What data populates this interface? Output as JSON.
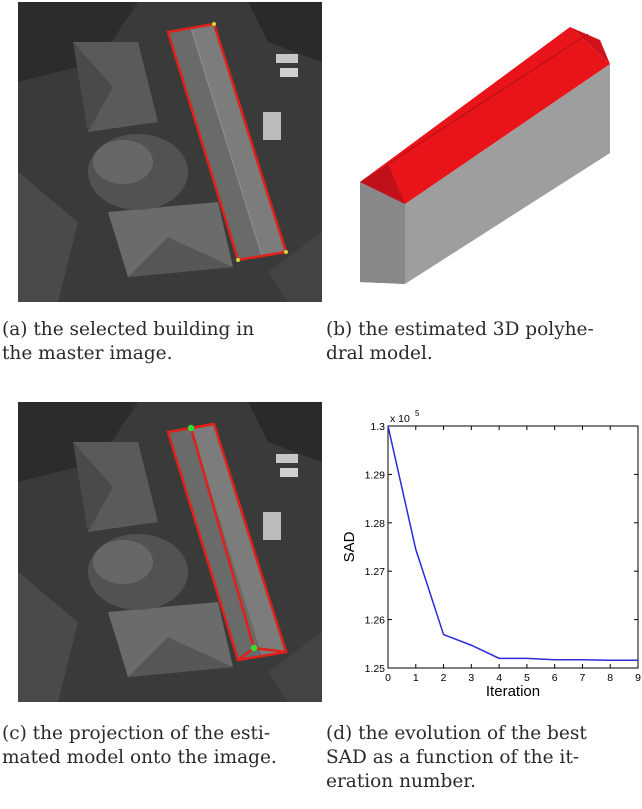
{
  "figure": {
    "panels": [
      {
        "id": "a",
        "caption_line1": "(a) the selected building in",
        "caption_line2": "the master image."
      },
      {
        "id": "b",
        "caption_line1": "(b) the estimated 3D polyhe-",
        "caption_line2": "dral model."
      },
      {
        "id": "c",
        "caption_line1": "(c) the projection of the esti-",
        "caption_line2": "mated model onto the image."
      },
      {
        "id": "d",
        "caption_line1": "(d) the evolution of the best",
        "caption_line2": "SAD as a function of the it-",
        "caption_line3": "eration number."
      }
    ]
  },
  "colors": {
    "outline": "#e0201a",
    "roof": "#e8141a",
    "wall_front": "#8c8c8c",
    "wall_side": "#9e9e9e",
    "line": "#2b2bd9",
    "marker": "#33dd33"
  },
  "chart_data": {
    "type": "line",
    "x": [
      0,
      1,
      2,
      3,
      4,
      5,
      6,
      7,
      8,
      9
    ],
    "y": [
      1.3,
      1.2745,
      1.2569,
      1.2547,
      1.252,
      1.252,
      1.2517,
      1.2517,
      1.2516,
      1.2516
    ],
    "xlabel": "Iteration",
    "ylabel": "SAD",
    "scale_label": "x 10",
    "scale_exponent": "5",
    "xlim": [
      0,
      9
    ],
    "ylim": [
      1.25,
      1.3
    ],
    "xticks": [
      "0",
      "1",
      "2",
      "3",
      "4",
      "5",
      "6",
      "7",
      "8",
      "9"
    ],
    "yticks": [
      "1.25",
      "1.26",
      "1.27",
      "1.28",
      "1.29",
      "1.3"
    ],
    "grid": false
  }
}
